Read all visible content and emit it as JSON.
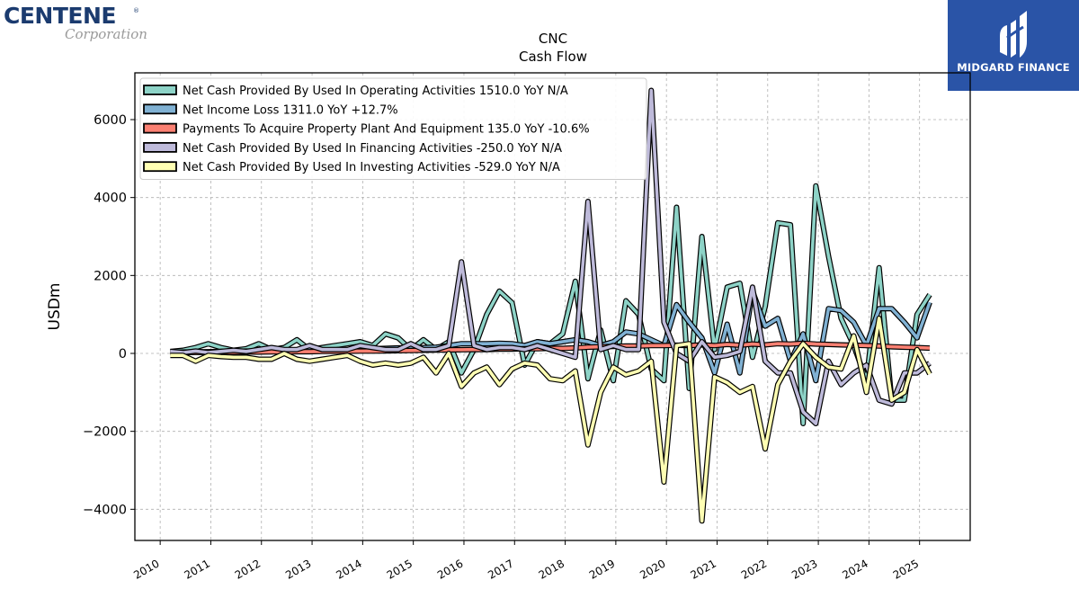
{
  "logos": {
    "left_name": "CENTENE",
    "left_reg": "®",
    "left_sub": "Corporation",
    "right_name": "MIDGARD FINANCE"
  },
  "chart_data": {
    "type": "line",
    "title": "CNC",
    "subtitle": "Cash Flow",
    "xlabel": "",
    "ylabel": "USDm",
    "xlim": [
      2009.5,
      2026.0
    ],
    "ylim": [
      -4800,
      7200
    ],
    "yticks": [
      -4000,
      -2000,
      0,
      2000,
      4000,
      6000
    ],
    "ytick_labels": [
      "−4000",
      "−2000",
      "0",
      "2000",
      "4000",
      "6000"
    ],
    "xticks": [
      2010,
      2011,
      2012,
      2013,
      2014,
      2015,
      2016,
      2017,
      2018,
      2019,
      2020,
      2021,
      2022,
      2023,
      2024,
      2025
    ],
    "xtick_labels": [
      "2010",
      "2011",
      "2012",
      "2013",
      "2014",
      "2015",
      "2016",
      "2017",
      "2018",
      "2019",
      "2020",
      "2021",
      "2022",
      "2023",
      "2024",
      "2025"
    ],
    "grid": true,
    "legend_position": "top-left",
    "series": [
      {
        "name": "Net Cash Provided By Used In Operating Activities  1510.0 YoY N/A",
        "color": "#8dd3c7",
        "x": [
          2010.2,
          2010.45,
          2010.7,
          2010.95,
          2011.2,
          2011.45,
          2011.7,
          2011.95,
          2012.2,
          2012.45,
          2012.7,
          2012.95,
          2013.2,
          2013.45,
          2013.7,
          2013.95,
          2014.2,
          2014.45,
          2014.7,
          2014.95,
          2015.2,
          2015.45,
          2015.7,
          2015.95,
          2016.2,
          2016.45,
          2016.7,
          2016.95,
          2017.2,
          2017.45,
          2017.7,
          2017.95,
          2018.2,
          2018.45,
          2018.7,
          2018.95,
          2019.2,
          2019.45,
          2019.7,
          2019.95,
          2020.2,
          2020.45,
          2020.7,
          2020.95,
          2021.2,
          2021.45,
          2021.7,
          2021.95,
          2022.2,
          2022.45,
          2022.7,
          2022.95,
          2023.2,
          2023.45,
          2023.7,
          2023.95,
          2024.2,
          2024.45,
          2024.7,
          2024.95,
          2025.2
        ],
        "values": [
          50,
          80,
          150,
          250,
          150,
          80,
          120,
          250,
          100,
          150,
          350,
          100,
          150,
          200,
          250,
          300,
          200,
          500,
          400,
          100,
          350,
          100,
          300,
          -500,
          100,
          1000,
          1600,
          1300,
          -300,
          300,
          250,
          500,
          1850,
          -650,
          600,
          -700,
          1350,
          1000,
          -400,
          -700,
          3750,
          -900,
          3000,
          100,
          1700,
          1800,
          -100,
          1200,
          3350,
          3300,
          -1800,
          4300,
          2500,
          900,
          200,
          -700,
          2200,
          -1200,
          -1200,
          1000,
          1510
        ]
      },
      {
        "name": "Net Income Loss  1311.0 YoY +12.7%",
        "color": "#80b1d3",
        "x": [
          2010.2,
          2010.45,
          2010.7,
          2010.95,
          2011.2,
          2011.45,
          2011.7,
          2011.95,
          2012.2,
          2012.45,
          2012.7,
          2012.95,
          2013.2,
          2013.45,
          2013.7,
          2013.95,
          2014.2,
          2014.45,
          2014.7,
          2014.95,
          2015.2,
          2015.45,
          2015.7,
          2015.95,
          2016.2,
          2016.45,
          2016.7,
          2016.95,
          2017.2,
          2017.45,
          2017.7,
          2017.95,
          2018.2,
          2018.45,
          2018.7,
          2018.95,
          2019.2,
          2019.45,
          2019.7,
          2019.95,
          2020.2,
          2020.45,
          2020.7,
          2020.95,
          2021.2,
          2021.45,
          2021.7,
          2021.95,
          2022.2,
          2022.45,
          2022.7,
          2022.95,
          2023.2,
          2023.45,
          2023.7,
          2023.95,
          2024.2,
          2024.45,
          2024.7,
          2024.95,
          2025.2
        ],
        "values": [
          30,
          35,
          40,
          45,
          50,
          55,
          60,
          65,
          70,
          75,
          80,
          85,
          90,
          95,
          100,
          110,
          120,
          130,
          140,
          150,
          150,
          160,
          200,
          250,
          250,
          250,
          260,
          250,
          200,
          300,
          250,
          300,
          350,
          300,
          200,
          300,
          550,
          500,
          350,
          200,
          1250,
          800,
          400,
          -500,
          750,
          -500,
          1600,
          700,
          900,
          -200,
          500,
          -700,
          1150,
          1100,
          800,
          200,
          1150,
          1150,
          800,
          400,
          1311
        ]
      },
      {
        "name": "Payments To Acquire Property Plant And Equipment  135.0 YoY -10.6%",
        "color": "#fb8072",
        "x": [
          2010.2,
          2010.45,
          2010.7,
          2010.95,
          2011.2,
          2011.45,
          2011.7,
          2011.95,
          2012.2,
          2012.45,
          2012.7,
          2012.95,
          2013.2,
          2013.45,
          2013.7,
          2013.95,
          2014.2,
          2014.45,
          2014.7,
          2014.95,
          2015.2,
          2015.45,
          2015.7,
          2015.95,
          2016.2,
          2016.45,
          2016.7,
          2016.95,
          2017.2,
          2017.45,
          2017.7,
          2017.95,
          2018.2,
          2018.45,
          2018.7,
          2018.95,
          2019.2,
          2019.45,
          2019.7,
          2019.95,
          2020.2,
          2020.45,
          2020.7,
          2020.95,
          2021.2,
          2021.45,
          2021.7,
          2021.95,
          2022.2,
          2022.45,
          2022.7,
          2022.95,
          2023.2,
          2023.45,
          2023.7,
          2023.95,
          2024.2,
          2024.45,
          2024.7,
          2024.95,
          2025.2
        ],
        "values": [
          20,
          20,
          25,
          25,
          30,
          30,
          35,
          35,
          40,
          40,
          45,
          45,
          50,
          50,
          55,
          60,
          60,
          65,
          70,
          75,
          80,
          85,
          90,
          95,
          100,
          100,
          110,
          110,
          120,
          120,
          130,
          130,
          140,
          160,
          170,
          180,
          190,
          190,
          200,
          200,
          210,
          200,
          220,
          200,
          230,
          210,
          240,
          220,
          250,
          240,
          260,
          240,
          230,
          220,
          210,
          200,
          190,
          170,
          160,
          150,
          135
        ]
      },
      {
        "name": "Net Cash Provided By Used In Financing Activities  -250.0 YoY N/A",
        "color": "#bebada",
        "x": [
          2010.2,
          2010.45,
          2010.7,
          2010.95,
          2011.2,
          2011.45,
          2011.7,
          2011.95,
          2012.2,
          2012.45,
          2012.7,
          2012.95,
          2013.2,
          2013.45,
          2013.7,
          2013.95,
          2014.2,
          2014.45,
          2014.7,
          2014.95,
          2015.2,
          2015.45,
          2015.7,
          2015.95,
          2016.2,
          2016.45,
          2016.7,
          2016.95,
          2017.2,
          2017.45,
          2017.7,
          2017.95,
          2018.2,
          2018.45,
          2018.7,
          2018.95,
          2019.2,
          2019.45,
          2019.7,
          2019.95,
          2020.2,
          2020.45,
          2020.7,
          2020.95,
          2021.2,
          2021.45,
          2021.7,
          2021.95,
          2022.2,
          2022.45,
          2022.7,
          2022.95,
          2023.2,
          2023.45,
          2023.7,
          2023.95,
          2024.2,
          2024.45,
          2024.7,
          2024.95,
          2025.2
        ],
        "values": [
          50,
          20,
          60,
          20,
          50,
          80,
          50,
          100,
          150,
          100,
          100,
          200,
          100,
          100,
          100,
          200,
          150,
          100,
          100,
          250,
          100,
          100,
          200,
          2350,
          200,
          100,
          150,
          150,
          100,
          200,
          100,
          0,
          -100,
          3900,
          100,
          200,
          100,
          100,
          6750,
          800,
          0,
          -200,
          300,
          -100,
          -50,
          50,
          1700,
          -200,
          -500,
          -500,
          -1500,
          -1800,
          -200,
          -800,
          -500,
          -300,
          -1200,
          -1300,
          -500,
          -500,
          -250
        ]
      },
      {
        "name": "Net Cash Provided By Used In Investing Activities  -529.0 YoY N/A",
        "color": "#ffffb3",
        "x": [
          2010.2,
          2010.45,
          2010.7,
          2010.95,
          2011.2,
          2011.45,
          2011.7,
          2011.95,
          2012.2,
          2012.45,
          2012.7,
          2012.95,
          2013.2,
          2013.45,
          2013.7,
          2013.95,
          2014.2,
          2014.45,
          2014.7,
          2014.95,
          2015.2,
          2015.45,
          2015.7,
          2015.95,
          2016.2,
          2016.45,
          2016.7,
          2016.95,
          2017.2,
          2017.45,
          2017.7,
          2017.95,
          2018.2,
          2018.45,
          2018.7,
          2018.95,
          2019.2,
          2019.45,
          2019.7,
          2019.95,
          2020.2,
          2020.45,
          2020.7,
          2020.95,
          2021.2,
          2021.45,
          2021.7,
          2021.95,
          2022.2,
          2022.45,
          2022.7,
          2022.95,
          2023.2,
          2023.45,
          2023.7,
          2023.95,
          2024.2,
          2024.45,
          2024.7,
          2024.95,
          2025.2
        ],
        "values": [
          -50,
          -50,
          -200,
          -50,
          -80,
          -100,
          -100,
          -150,
          -150,
          0,
          -150,
          -200,
          -150,
          -100,
          -50,
          -200,
          -300,
          -250,
          -300,
          -250,
          -100,
          -500,
          0,
          -850,
          -500,
          -350,
          -800,
          -400,
          -250,
          -300,
          -650,
          -700,
          -450,
          -2350,
          -1000,
          -350,
          -550,
          -450,
          -200,
          -3300,
          200,
          250,
          -4300,
          -600,
          -750,
          -1000,
          -850,
          -2450,
          -800,
          -200,
          250,
          -100,
          -350,
          -400,
          450,
          -1000,
          900,
          -1200,
          -1000,
          100,
          -529
        ]
      }
    ]
  }
}
